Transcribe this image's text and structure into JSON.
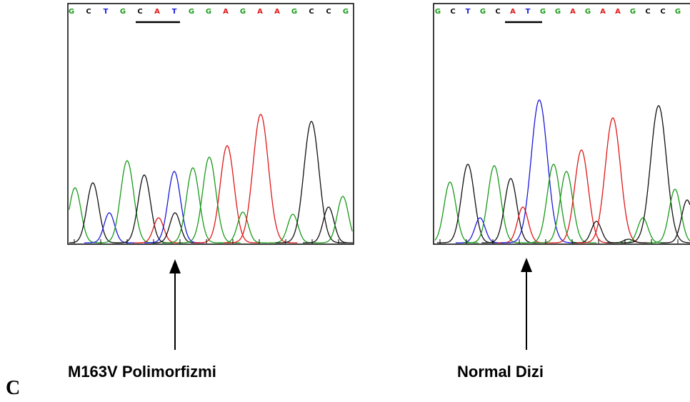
{
  "panels": [
    {
      "sequence": [
        "G",
        "C",
        "T",
        "G",
        "C",
        "A",
        "T",
        "G",
        "G",
        "A",
        "G",
        "A",
        "A",
        "G",
        "C",
        "C",
        "G"
      ],
      "caption": "M163V Polimorfizmi"
    },
    {
      "sequence": [
        "G",
        "C",
        "T",
        "G",
        "C",
        "A",
        "T",
        "G",
        "G",
        "A",
        "G",
        "A",
        "A",
        "G",
        "C",
        "C",
        "G"
      ],
      "caption": "Normal Dizi"
    }
  ],
  "figure_label": "C"
}
